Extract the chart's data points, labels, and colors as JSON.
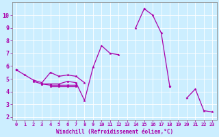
{
  "bg_color": "#cceeff",
  "line_color": "#aa00aa",
  "xlabel": "Windchill (Refroidissement éolien,°C)",
  "xlim": [
    -0.5,
    23.5
  ],
  "ylim": [
    1.8,
    11.0
  ],
  "yticks": [
    2,
    3,
    4,
    5,
    6,
    7,
    8,
    9,
    10
  ],
  "xticks": [
    0,
    1,
    2,
    3,
    4,
    5,
    6,
    7,
    8,
    9,
    10,
    11,
    12,
    13,
    14,
    15,
    16,
    17,
    18,
    19,
    20,
    21,
    22,
    23
  ],
  "lines": [
    {
      "x": [
        0,
        1,
        2,
        3,
        4,
        5,
        6,
        7,
        8,
        9,
        10,
        11,
        12,
        13,
        14,
        15,
        16,
        17,
        18,
        19,
        20,
        21,
        22,
        23
      ],
      "y": [
        5.7,
        5.3,
        4.9,
        4.7,
        5.5,
        5.2,
        5.3,
        5.2,
        4.7,
        null,
        null,
        null,
        null,
        null,
        null,
        null,
        null,
        null,
        null,
        null,
        null,
        null,
        null,
        null
      ]
    },
    {
      "x": [
        0,
        1,
        2,
        3,
        4,
        5,
        6,
        7,
        8,
        9,
        10,
        11,
        12,
        13,
        14,
        15,
        16,
        17,
        18,
        19,
        20,
        21,
        22,
        23
      ],
      "y": [
        5.7,
        null,
        4.8,
        4.6,
        4.6,
        4.6,
        4.8,
        4.7,
        3.3,
        5.9,
        7.6,
        7.0,
        6.9,
        null,
        null,
        null,
        null,
        null,
        null,
        null,
        null,
        null,
        null,
        null
      ]
    },
    {
      "x": [
        0,
        1,
        2,
        3,
        4,
        5,
        6,
        7,
        8,
        9,
        10,
        11,
        12,
        13,
        14,
        15,
        16,
        17,
        18,
        19,
        20,
        21,
        22,
        23
      ],
      "y": [
        5.7,
        null,
        null,
        4.6,
        4.5,
        4.5,
        4.5,
        4.5,
        null,
        null,
        null,
        null,
        null,
        null,
        null,
        null,
        null,
        null,
        4.4,
        null,
        3.5,
        4.2,
        2.5,
        2.4
      ]
    },
    {
      "x": [
        0,
        1,
        2,
        3,
        4,
        5,
        6,
        7,
        8,
        9,
        10,
        11,
        12,
        13,
        14,
        15,
        16,
        17,
        18,
        19,
        20,
        21,
        22,
        23
      ],
      "y": [
        5.7,
        null,
        null,
        null,
        4.4,
        4.4,
        4.4,
        4.4,
        null,
        null,
        null,
        null,
        null,
        null,
        null,
        10.5,
        10.0,
        8.6,
        4.4,
        null,
        null,
        null,
        null,
        null
      ]
    },
    {
      "x": [
        0,
        1,
        2,
        3,
        4,
        5,
        6,
        7,
        8,
        9,
        10,
        11,
        12,
        13,
        14,
        15,
        16,
        17,
        18,
        19,
        20,
        21,
        22,
        23
      ],
      "y": [
        5.7,
        null,
        null,
        null,
        null,
        null,
        null,
        null,
        null,
        null,
        null,
        null,
        null,
        null,
        9.0,
        10.5,
        null,
        null,
        null,
        null,
        null,
        null,
        null,
        null
      ]
    }
  ]
}
